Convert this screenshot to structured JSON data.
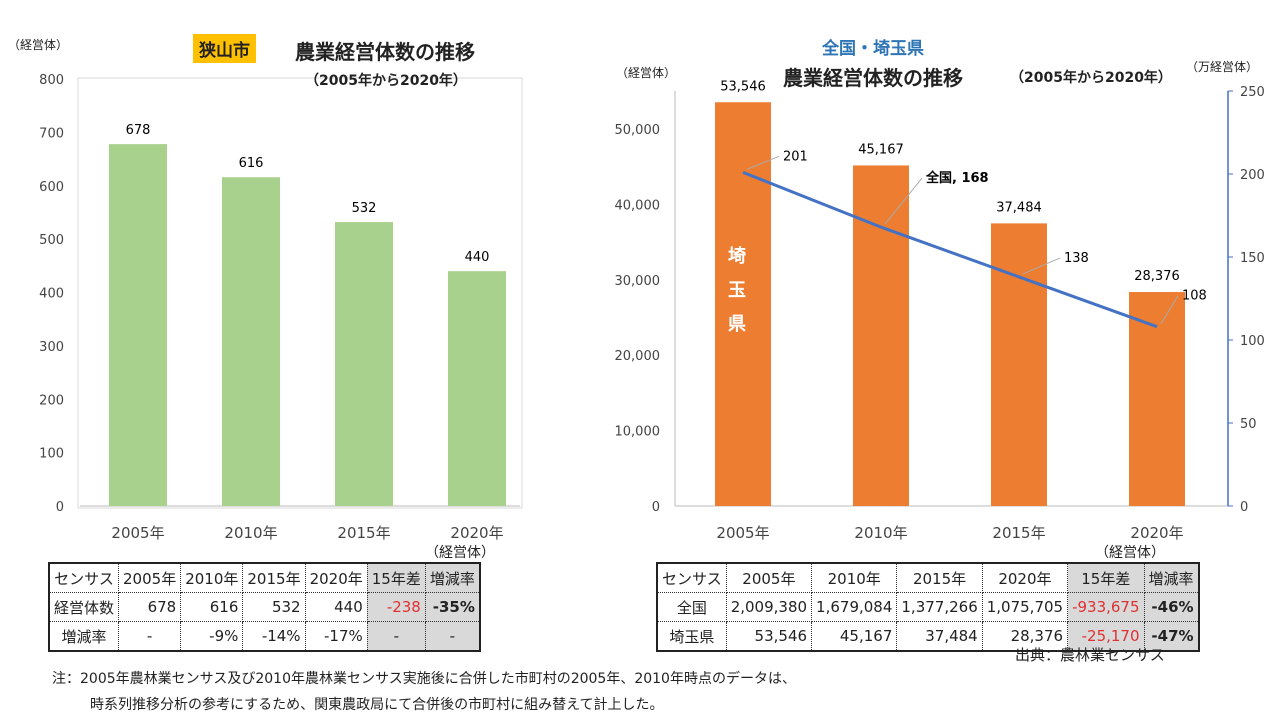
{
  "left": {
    "badge": "狭山市",
    "title": "農業経営体数の推移",
    "subtitle": "（2005年から2020年）",
    "yunit": "（経営体）",
    "table_unit": "（経営体）",
    "table": {
      "headers": [
        "センサス",
        "2005年",
        "2010年",
        "2015年",
        "2020年",
        "15年差",
        "増減率"
      ],
      "rows": [
        [
          "経営体数",
          "678",
          "616",
          "532",
          "440",
          "-238",
          "-35%"
        ],
        [
          "増減率",
          "-",
          "-9%",
          "-14%",
          "-17%",
          "-",
          "-"
        ]
      ]
    }
  },
  "right": {
    "region": "全国・埼玉県",
    "title": "農業経営体数の推移",
    "subtitle": "（2005年から2020年）",
    "yunit_left": "（経営体）",
    "yunit_right": "（万経営体）",
    "bar_label": "埼\n玉\n県",
    "table_unit": "（経営体）",
    "source": "出典：農林業センサス",
    "table": {
      "headers": [
        "センサス",
        "2005年",
        "2010年",
        "2015年",
        "2020年",
        "15年差",
        "増減率"
      ],
      "rows": [
        [
          "全国",
          "2,009,380",
          "1,679,084",
          "1,377,266",
          "1,075,705",
          "-933,675",
          "-46%"
        ],
        [
          "埼玉県",
          "53,546",
          "45,167",
          "37,484",
          "28,376",
          "-25,170",
          "-47%"
        ]
      ]
    }
  },
  "note": [
    "注：2005年農林業センサス及び2010年農林業センサス実施後に合併した市町村の2005年、2010年時点のデータは、",
    "時系列推移分析の参考にするため、関東農政局にて合併後の市町村に組み替えて計上した。"
  ],
  "chart_data": [
    {
      "type": "bar",
      "title": "農業経営体数の推移",
      "categories": [
        "2005年",
        "2010年",
        "2015年",
        "2020年"
      ],
      "values": [
        678,
        616,
        532,
        440
      ],
      "data_labels": [
        "678",
        "616",
        "532",
        "440"
      ],
      "ylabel": "（経営体）",
      "ylim": [
        0,
        800
      ],
      "yticks": [
        0,
        100,
        200,
        300,
        400,
        500,
        600,
        700,
        800
      ],
      "color": "#a9d18e",
      "grid": false
    },
    {
      "type": "bar+line",
      "title": "農業経営体数の推移",
      "categories": [
        "2005年",
        "2010年",
        "2015年",
        "2020年"
      ],
      "series": [
        {
          "name": "埼玉県",
          "type": "bar",
          "axis": "left",
          "values": [
            53546,
            45167,
            37484,
            28376
          ],
          "data_labels": [
            "53,546",
            "45,167",
            "37,484",
            "28,376"
          ],
          "color": "#ed7d31"
        },
        {
          "name": "全国",
          "type": "line",
          "axis": "right",
          "values": [
            201,
            168,
            138,
            108
          ],
          "data_labels": [
            "201",
            "全国, 168",
            "138",
            "108"
          ],
          "color": "#4472c4"
        }
      ],
      "ylim": [
        0,
        50000
      ],
      "yticks": [
        "0",
        "10,000",
        "20,000",
        "30,000",
        "40,000",
        "50,000"
      ],
      "y2lim": [
        0,
        250
      ],
      "y2ticks": [
        "0",
        "50",
        "100",
        "150",
        "200",
        "250"
      ],
      "grid": false
    }
  ]
}
